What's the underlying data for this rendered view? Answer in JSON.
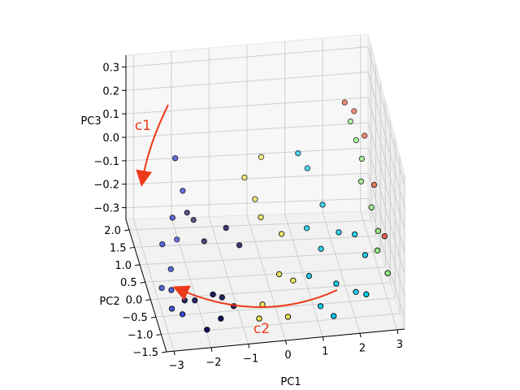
{
  "chart_data": {
    "type": "scatter",
    "projection": "3d",
    "xlabel": "PC1",
    "ylabel": "PC2",
    "zlabel": "PC3",
    "xlim": [
      -3.2,
      3.2
    ],
    "ylim": [
      -1.5,
      2.3
    ],
    "zlim": [
      -0.35,
      0.35
    ],
    "grid": true,
    "x_ticks": [
      "−3",
      "−2",
      "−1",
      "0",
      "1",
      "2",
      "3"
    ],
    "y_ticks": [
      "−1.5",
      "−1.0",
      "−0.5",
      "0.0",
      "0.5",
      "1.0",
      "1.5",
      "2.0"
    ],
    "z_ticks": [
      "0.3",
      "0.2",
      "0.1",
      "0.0",
      "−0.1",
      "−0.2",
      "−0.3"
    ],
    "colormap": [
      "#000055",
      "#2a3bd6",
      "#00c8f0",
      "#f0e64a",
      "#8ff07a",
      "#e8452a"
    ],
    "annotations": [
      {
        "text": "c1",
        "color": "#ee3a1a"
      },
      {
        "text": "c2",
        "color": "#ee3a1a"
      }
    ],
    "points": [
      {
        "x": -2.4,
        "y": 0.5,
        "z": 0.2,
        "c": 1
      },
      {
        "x": -2.2,
        "y": 0.5,
        "z": 0.05,
        "c": 1
      },
      {
        "x": -2.8,
        "y": 0.3,
        "z": -0.15,
        "c": 1
      },
      {
        "x": -2.5,
        "y": 0.4,
        "z": -0.05,
        "c": 1
      },
      {
        "x": -2.3,
        "y": 0.7,
        "z": -0.2,
        "c": 1
      },
      {
        "x": -2.6,
        "y": 0.2,
        "z": -0.25,
        "c": 1
      },
      {
        "x": -2.0,
        "y": 0.8,
        "z": -0.1,
        "c": 0
      },
      {
        "x": -1.8,
        "y": 0.9,
        "z": -0.15,
        "c": 0
      },
      {
        "x": -1.6,
        "y": 0.6,
        "z": -0.2,
        "c": 0
      },
      {
        "x": -2.9,
        "y": 0.0,
        "z": -0.3,
        "c": 1
      },
      {
        "x": -2.7,
        "y": -0.2,
        "z": -0.28,
        "c": 1
      },
      {
        "x": -2.4,
        "y": -0.4,
        "z": -0.3,
        "c": 0
      },
      {
        "x": -2.1,
        "y": -0.3,
        "z": -0.32,
        "c": 0
      },
      {
        "x": -1.7,
        "y": -0.6,
        "z": -0.25,
        "c": 0
      },
      {
        "x": -1.4,
        "y": -0.4,
        "z": -0.3,
        "c": 0
      },
      {
        "x": -1.2,
        "y": -0.8,
        "z": -0.28,
        "c": 0
      },
      {
        "x": -1.6,
        "y": -1.0,
        "z": -0.3,
        "c": 0
      },
      {
        "x": -2.0,
        "y": -1.1,
        "z": -0.33,
        "c": 0
      },
      {
        "x": -2.8,
        "y": -0.6,
        "z": -0.3,
        "c": 1
      },
      {
        "x": -2.6,
        "y": -0.9,
        "z": -0.28,
        "c": 1
      },
      {
        "x": -1.1,
        "y": 0.3,
        "z": -0.1,
        "c": 0
      },
      {
        "x": -0.8,
        "y": 0.1,
        "z": -0.15,
        "c": 0
      },
      {
        "x": -0.5,
        "y": 0.7,
        "z": 0.05,
        "c": 3
      },
      {
        "x": -0.3,
        "y": 0.4,
        "z": 0.0,
        "c": 3
      },
      {
        "x": 0.0,
        "y": 0.9,
        "z": 0.1,
        "c": 3
      },
      {
        "x": -0.2,
        "y": 0.2,
        "z": -0.05,
        "c": 3
      },
      {
        "x": 0.3,
        "y": 0.0,
        "z": -0.1,
        "c": 3
      },
      {
        "x": 0.1,
        "y": -0.5,
        "z": -0.2,
        "c": 3
      },
      {
        "x": -0.4,
        "y": -0.7,
        "z": -0.3,
        "c": 3
      },
      {
        "x": 0.5,
        "y": -0.4,
        "z": -0.25,
        "c": 3
      },
      {
        "x": 0.2,
        "y": -1.0,
        "z": -0.32,
        "c": 3
      },
      {
        "x": -0.6,
        "y": -1.1,
        "z": -0.3,
        "c": 3
      },
      {
        "x": 0.9,
        "y": 0.6,
        "z": 0.15,
        "c": 2
      },
      {
        "x": 1.2,
        "y": 0.8,
        "z": 0.05,
        "c": 2
      },
      {
        "x": 1.5,
        "y": 0.4,
        "z": -0.05,
        "c": 2
      },
      {
        "x": 1.0,
        "y": 0.1,
        "z": -0.1,
        "c": 2
      },
      {
        "x": 1.3,
        "y": -0.2,
        "z": -0.15,
        "c": 2
      },
      {
        "x": 0.9,
        "y": -0.5,
        "z": -0.22,
        "c": 2
      },
      {
        "x": 1.6,
        "y": -0.6,
        "z": -0.25,
        "c": 2
      },
      {
        "x": 1.8,
        "y": -0.1,
        "z": -0.1,
        "c": 2
      },
      {
        "x": 2.1,
        "y": -0.7,
        "z": -0.28,
        "c": 2
      },
      {
        "x": 1.1,
        "y": -0.9,
        "z": -0.3,
        "c": 2
      },
      {
        "x": 1.4,
        "y": -1.1,
        "z": -0.32,
        "c": 2
      },
      {
        "x": 2.3,
        "y": 1.2,
        "z": 0.25,
        "c": 5
      },
      {
        "x": 2.4,
        "y": 1.0,
        "z": 0.2,
        "c": 4
      },
      {
        "x": 2.5,
        "y": 0.8,
        "z": 0.15,
        "c": 4
      },
      {
        "x": 2.6,
        "y": 0.6,
        "z": 0.1,
        "c": 4
      },
      {
        "x": 2.5,
        "y": 0.3,
        "z": 0.05,
        "c": 4
      },
      {
        "x": 2.7,
        "y": 0.0,
        "z": -0.02,
        "c": 4
      },
      {
        "x": 2.8,
        "y": -0.3,
        "z": -0.08,
        "c": 4
      },
      {
        "x": 2.7,
        "y": -0.6,
        "z": -0.12,
        "c": 4
      },
      {
        "x": 2.9,
        "y": -0.9,
        "z": -0.18,
        "c": 4
      },
      {
        "x": 2.6,
        "y": 1.4,
        "z": 0.18,
        "c": 5
      },
      {
        "x": 2.8,
        "y": 1.1,
        "z": 0.12,
        "c": 5
      },
      {
        "x": 2.9,
        "y": 0.5,
        "z": 0.0,
        "c": 5
      },
      {
        "x": 3.0,
        "y": -0.2,
        "z": -0.12,
        "c": 5
      },
      {
        "x": 2.2,
        "y": -0.2,
        "z": -0.1,
        "c": 2
      },
      {
        "x": 2.4,
        "y": -0.5,
        "z": -0.15,
        "c": 2
      },
      {
        "x": 2.3,
        "y": -1.0,
        "z": -0.25,
        "c": 2
      }
    ]
  }
}
